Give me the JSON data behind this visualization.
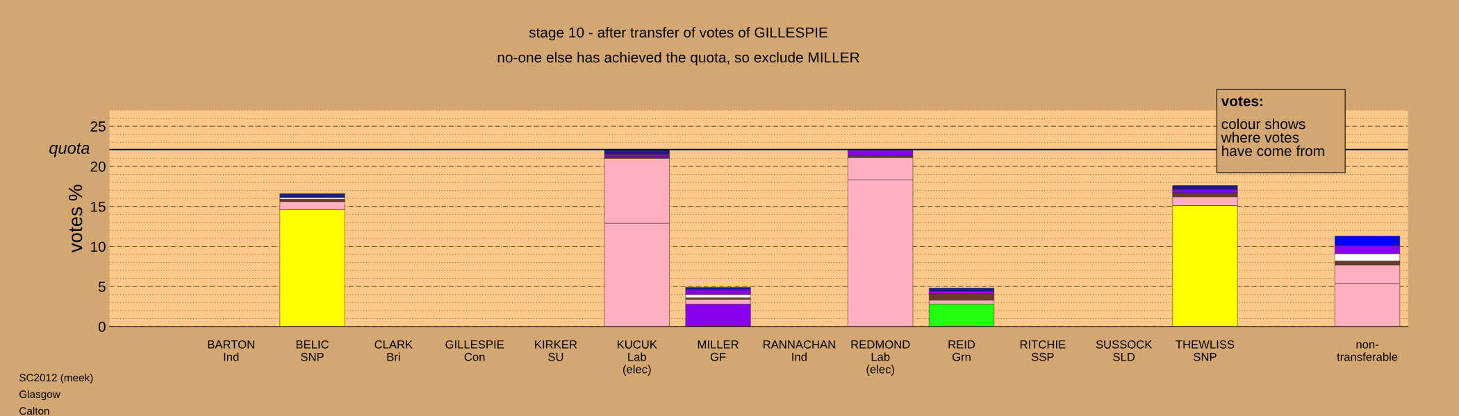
{
  "chart_data": {
    "type": "bar",
    "stacked": true,
    "title": "stage 10 - after transfer of votes of GILLESPIE",
    "subtitle": "no-one else has achieved the quota, so exclude MILLER",
    "ylabel": "votes %",
    "categories": [
      "BARTON\nInd",
      "BELIC\nSNP",
      "CLARK\nBri",
      "GILLESPIE\nCon",
      "KIRKER\nSU",
      "KUCUK\nLab\n(elec)",
      "MILLER\nGF",
      "RANNACHAN\nInd",
      "REDMOND\nLab\n(elec)",
      "REID\nGrn",
      "RITCHIE\nSSP",
      "SUSSOCK\nSLD",
      "THEWLISS\nSNP",
      null,
      "non-\ntransferable"
    ],
    "series": [
      {
        "colors": [
          "#ffb0c0",
          "#ffff00",
          "#ffb0c0",
          "#ffb0c0",
          "#ffb0c0",
          "#ffb0c0",
          "#8800ee",
          "#ffb0c0",
          "#ffb0c0",
          "#22ff11",
          "#ffb0c0",
          "#ffb0c0",
          "#ffff00",
          "#ffb0c0",
          "#ffb0c0"
        ],
        "values": [
          0,
          14.6,
          0,
          0,
          0,
          12.9,
          2.8,
          0,
          18.3,
          2.8,
          0,
          0,
          15.1,
          null,
          5.4
        ]
      },
      {
        "color": "#ffb0c0",
        "values": [
          0,
          1.0,
          0,
          0,
          0,
          8.1,
          0.6,
          0,
          2.8,
          0.5,
          0,
          0,
          1.1,
          null,
          2.3
        ]
      },
      {
        "color": "#6a3a2a",
        "values": [
          0,
          0.3,
          0,
          0,
          0,
          0.2,
          0.2,
          0,
          0.3,
          0.8,
          0,
          0,
          0.5,
          null,
          0.5
        ]
      },
      {
        "color": "#ffffff",
        "values": [
          0,
          0.2,
          0,
          0,
          0,
          0,
          0.4,
          0,
          0,
          0,
          0,
          0,
          0,
          null,
          0.9
        ]
      },
      {
        "color": "#8800ee",
        "values": [
          0,
          0,
          0,
          0,
          0,
          0.3,
          0.6,
          0,
          0.6,
          0.3,
          0,
          0,
          0.4,
          null,
          1.0
        ]
      },
      {
        "color": "#1a1a8a",
        "values": [
          0,
          0.5,
          0,
          0,
          0,
          0.6,
          0.3,
          0,
          0,
          0.4,
          0,
          0,
          0.5,
          null,
          0
        ]
      },
      {
        "color": "#0000ff",
        "values": [
          0,
          0,
          0,
          0,
          0,
          0,
          0,
          0,
          0,
          0,
          0,
          0,
          0,
          null,
          1.2
        ]
      }
    ],
    "ylim": [
      0,
      27
    ],
    "yticks": [
      0,
      5,
      10,
      15,
      20,
      25
    ],
    "grid": "y",
    "ref_lines": [
      {
        "axis": "y",
        "value": 22.1,
        "label": "quota",
        "color": "#000000"
      }
    ],
    "annotations": [
      "votes:",
      "colour shows\nwhere votes\nhave come from",
      "SC2012 (meek)",
      "Glasgow",
      "Calton"
    ]
  }
}
